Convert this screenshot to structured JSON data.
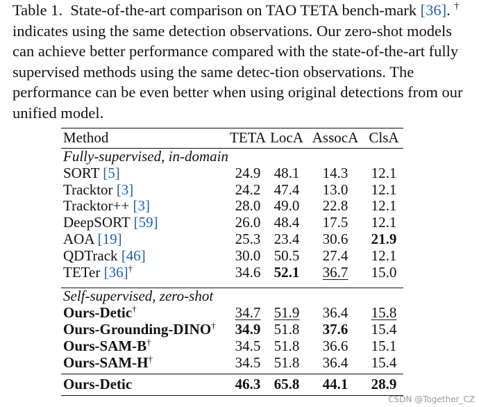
{
  "caption": {
    "label": "Table 1.",
    "text1": "State-of-the-art comparison on TAO TETA bench-mark",
    "cite": "[36]",
    "text2": ".",
    "dagger": "†",
    "text3": "indicates using the same detection observations. Our zero-shot models can achieve better performance compared with the state-of-the-art fully supervised methods using the same detec-tion observations. The performance can be even better when using original detections from our unified model."
  },
  "table": {
    "headers": [
      "Method",
      "TETA",
      "LocA",
      "AssocA",
      "ClsA"
    ],
    "sections": [
      {
        "title": "Fully-supervised, in-domain",
        "rows": [
          {
            "name": "SORT",
            "cite": "[5]",
            "dagger": "",
            "bold_name": false,
            "values": [
              "24.9",
              "48.1",
              "14.3",
              "12.1"
            ],
            "bold": [
              false,
              false,
              false,
              false
            ],
            "underline": [
              false,
              false,
              false,
              false
            ]
          },
          {
            "name": "Tracktor",
            "cite": "[3]",
            "dagger": "",
            "bold_name": false,
            "values": [
              "24.2",
              "47.4",
              "13.0",
              "12.1"
            ],
            "bold": [
              false,
              false,
              false,
              false
            ],
            "underline": [
              false,
              false,
              false,
              false
            ]
          },
          {
            "name": "Tracktor++",
            "cite": "[3]",
            "dagger": "",
            "bold_name": false,
            "values": [
              "28.0",
              "49.0",
              "22.8",
              "12.1"
            ],
            "bold": [
              false,
              false,
              false,
              false
            ],
            "underline": [
              false,
              false,
              false,
              false
            ]
          },
          {
            "name": "DeepSORT",
            "cite": "[59]",
            "dagger": "",
            "bold_name": false,
            "values": [
              "26.0",
              "48.4",
              "17.5",
              "12.1"
            ],
            "bold": [
              false,
              false,
              false,
              false
            ],
            "underline": [
              false,
              false,
              false,
              false
            ]
          },
          {
            "name": "AOA",
            "cite": "[19]",
            "dagger": "",
            "bold_name": false,
            "values": [
              "25.3",
              "23.4",
              "30.6",
              "21.9"
            ],
            "bold": [
              false,
              false,
              false,
              true
            ],
            "underline": [
              false,
              false,
              false,
              false
            ]
          },
          {
            "name": "QDTrack",
            "cite": "[46]",
            "dagger": "",
            "bold_name": false,
            "values": [
              "30.0",
              "50.5",
              "27.4",
              "12.1"
            ],
            "bold": [
              false,
              false,
              false,
              false
            ],
            "underline": [
              false,
              false,
              false,
              false
            ]
          },
          {
            "name": "TETer",
            "cite": "[36]",
            "dagger": "†",
            "bold_name": false,
            "values": [
              "34.6",
              "52.1",
              "36.7",
              "15.0"
            ],
            "bold": [
              false,
              true,
              false,
              false
            ],
            "underline": [
              false,
              false,
              true,
              false
            ]
          }
        ]
      },
      {
        "title": "Self-supervised, zero-shot",
        "rows": [
          {
            "name": "Ours-Detic",
            "cite": "",
            "dagger": "†",
            "bold_name": true,
            "values": [
              "34.7",
              "51.9",
              "36.4",
              "15.8"
            ],
            "bold": [
              false,
              false,
              false,
              false
            ],
            "underline": [
              true,
              true,
              false,
              true
            ]
          },
          {
            "name": "Ours-Grounding-DINO",
            "cite": "",
            "dagger": "†",
            "bold_name": true,
            "values": [
              "34.9",
              "51.8",
              "37.6",
              "15.4"
            ],
            "bold": [
              true,
              false,
              true,
              false
            ],
            "underline": [
              false,
              false,
              false,
              false
            ]
          },
          {
            "name": "Ours-SAM-B",
            "cite": "",
            "dagger": "†",
            "bold_name": true,
            "values": [
              "34.5",
              "51.8",
              "36.6",
              "15.1"
            ],
            "bold": [
              false,
              false,
              false,
              false
            ],
            "underline": [
              false,
              false,
              false,
              false
            ]
          },
          {
            "name": "Ours-SAM-H",
            "cite": "",
            "dagger": "†",
            "bold_name": true,
            "values": [
              "34.5",
              "51.8",
              "36.4",
              "15.4"
            ],
            "bold": [
              false,
              false,
              false,
              false
            ],
            "underline": [
              false,
              false,
              false,
              false
            ]
          }
        ]
      }
    ],
    "final_row": {
      "name": "Ours-Detic",
      "values": [
        "46.3",
        "65.8",
        "44.1",
        "28.9"
      ]
    }
  },
  "watermark": "CSDN @Together_CZ"
}
